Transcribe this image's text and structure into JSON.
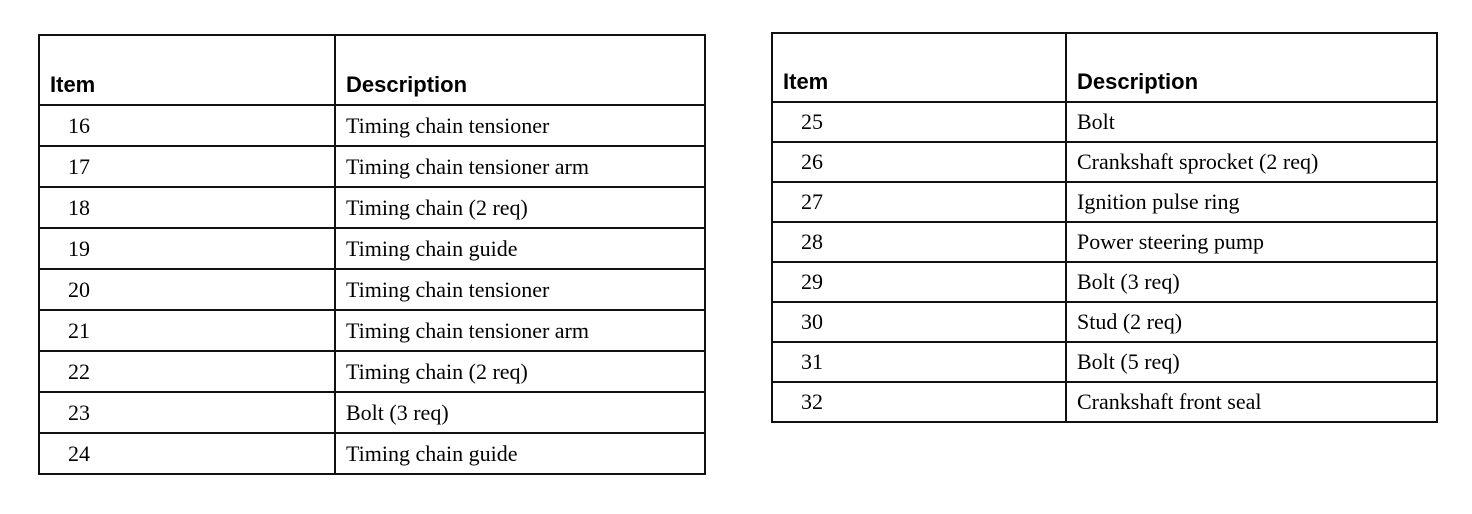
{
  "left_table": {
    "headers": [
      "Item",
      "Description"
    ],
    "rows": [
      [
        "16",
        "Timing chain tensioner"
      ],
      [
        "17",
        "Timing chain tensioner arm"
      ],
      [
        "18",
        "Timing chain (2 req)"
      ],
      [
        "19",
        "Timing chain guide"
      ],
      [
        "20",
        "Timing chain tensioner"
      ],
      [
        "21",
        "Timing chain tensioner arm"
      ],
      [
        "22",
        "Timing chain (2 req)"
      ],
      [
        "23",
        "Bolt (3 req)"
      ],
      [
        "24",
        "Timing chain guide"
      ]
    ]
  },
  "right_table": {
    "headers": [
      "Item",
      "Description"
    ],
    "rows": [
      [
        "25",
        "Bolt"
      ],
      [
        "26",
        "Crankshaft sprocket (2 req)"
      ],
      [
        "27",
        "Ignition pulse ring"
      ],
      [
        "28",
        "Power steering pump"
      ],
      [
        "29",
        "Bolt (3 req)"
      ],
      [
        "30",
        "Stud (2 req)"
      ],
      [
        "31",
        "Bolt (5 req)"
      ],
      [
        "32",
        "Crankshaft front seal"
      ]
    ]
  }
}
